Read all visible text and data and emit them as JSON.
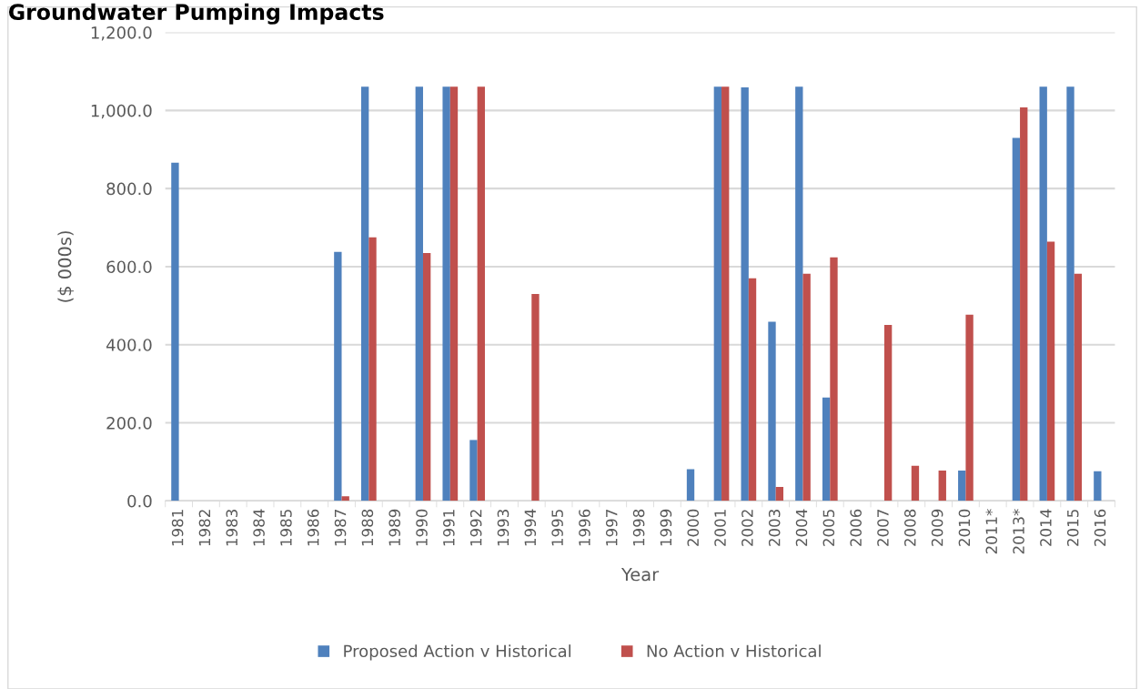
{
  "chart_data": {
    "type": "bar",
    "title": "Groundwater Pumping Impacts",
    "xlabel": "Year",
    "ylabel": "($ 000s)",
    "categories": [
      "1981",
      "1982",
      "1983",
      "1984",
      "1985",
      "1986",
      "1987",
      "1988",
      "1989",
      "1990",
      "1991",
      "1992",
      "1993",
      "1994",
      "1995",
      "1996",
      "1997",
      "1998",
      "1999",
      "2000",
      "2001",
      "2002",
      "2003",
      "2004",
      "2005",
      "2006",
      "2007",
      "2008",
      "2009",
      "2010",
      "2011*",
      "2013*",
      "2014",
      "2015",
      "2016"
    ],
    "series": [
      {
        "name": "Proposed Action v Historical",
        "color": "#4f81bd",
        "values": [
          866,
          0,
          0,
          0,
          0,
          0,
          638,
          1061,
          0,
          1061,
          1061,
          156,
          0,
          0,
          0,
          0,
          0,
          0,
          0,
          81,
          1061,
          1059,
          459,
          1061,
          265,
          0,
          0,
          0,
          0,
          78,
          0,
          930,
          1061,
          1061,
          76
        ]
      },
      {
        "name": "No Action v Historical",
        "color": "#c0504d",
        "values": [
          0,
          0,
          0,
          0,
          0,
          0,
          12,
          675,
          0,
          635,
          1061,
          1061,
          0,
          530,
          0,
          0,
          0,
          0,
          0,
          0,
          1061,
          570,
          36,
          582,
          624,
          0,
          451,
          90,
          78,
          477,
          0,
          1008,
          664,
          582,
          0
        ]
      }
    ],
    "ylim": [
      0,
      1200
    ],
    "yticks": [
      {
        "value": 0,
        "label": "0.0"
      },
      {
        "value": 200,
        "label": "200.0"
      },
      {
        "value": 400,
        "label": "400.0"
      },
      {
        "value": 600,
        "label": "600.0"
      },
      {
        "value": 800,
        "label": "800.0"
      },
      {
        "value": 1000,
        "label": "1,000.0"
      },
      {
        "value": 1200,
        "label": "1,200.0"
      }
    ],
    "grid": "y",
    "legend": "bottom"
  }
}
